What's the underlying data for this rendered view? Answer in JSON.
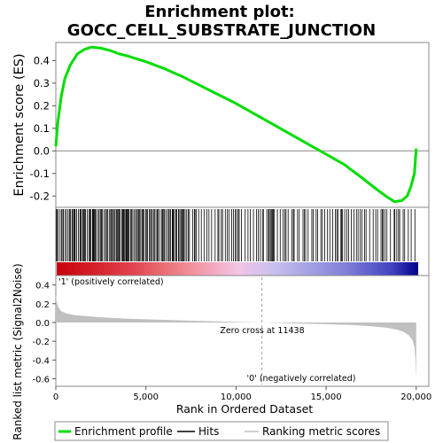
{
  "title_line1": "Enrichment plot:",
  "title_line2": "GOCC_CELL_SUBSTRATE_JUNCTION",
  "colors": {
    "es_line": "#00dd00",
    "hits": "#000000",
    "metric_fill": "#c0c0c0",
    "pos_label": "#cc0000",
    "neg_label": "#0000cc",
    "zero_cross_line": "#a0a0a0"
  },
  "chart_data": [
    {
      "type": "line",
      "name": "enrichment-score",
      "ylabel": "Enrichment score (ES)",
      "ylim": [
        -0.25,
        0.48
      ],
      "yticks": [
        -0.2,
        -0.1,
        0.0,
        0.1,
        0.2,
        0.3,
        0.4
      ],
      "ytick_labels": [
        "-0.2",
        "-0.1",
        "0.0",
        "0.1",
        "0.2",
        "0.3",
        "0.4"
      ],
      "xlim": [
        0,
        20700
      ],
      "series": [
        {
          "name": "Enrichment profile",
          "x": [
            0,
            100,
            300,
            500,
            800,
            1200,
            1600,
            2000,
            2500,
            3000,
            3500,
            4000,
            5000,
            6000,
            7000,
            8000,
            9000,
            10000,
            11000,
            11438,
            12000,
            13000,
            14000,
            15000,
            16000,
            17000,
            17800,
            18400,
            18800,
            19200,
            19500,
            19700,
            19900,
            20000
          ],
          "y": [
            0.02,
            0.12,
            0.24,
            0.32,
            0.38,
            0.43,
            0.45,
            0.46,
            0.455,
            0.445,
            0.43,
            0.42,
            0.395,
            0.365,
            0.33,
            0.29,
            0.25,
            0.21,
            0.165,
            0.145,
            0.12,
            0.075,
            0.03,
            -0.015,
            -0.06,
            -0.12,
            -0.17,
            -0.205,
            -0.225,
            -0.22,
            -0.2,
            -0.16,
            -0.1,
            0.01
          ]
        }
      ]
    },
    {
      "type": "heatmap",
      "name": "hits-and-ranking",
      "hits_bands": [
        [
          0,
          7400
        ],
        [
          7400,
          11900
        ],
        [
          11900,
          20000
        ]
      ],
      "hits_density": [
        "high",
        "medium",
        "medium"
      ]
    },
    {
      "type": "area",
      "name": "ranked-list-metric",
      "ylabel": "Ranked list metric (Signal2Noise)",
      "xlabel": "Rank in Ordered Dataset",
      "ylim": [
        -0.68,
        0.5
      ],
      "yticks": [
        -0.6,
        -0.4,
        -0.2,
        0.0,
        0.2,
        0.4
      ],
      "ytick_labels": [
        "-0.6",
        "-0.4",
        "-0.2",
        "0.0",
        "0.2",
        "0.4"
      ],
      "xlim": [
        0,
        20700
      ],
      "xticks": [
        0,
        5000,
        10000,
        15000,
        20000
      ],
      "xtick_labels": [
        "0",
        "5,000",
        "10,000",
        "15,000",
        "20,000"
      ],
      "series": [
        {
          "name": "Ranking metric scores",
          "x": [
            0,
            50,
            150,
            300,
            600,
            1000,
            1500,
            2500,
            4000,
            6000,
            8000,
            10000,
            11438,
            13000,
            15000,
            16500,
            17500,
            18300,
            18900,
            19300,
            19600,
            19800,
            19900,
            19960,
            20000
          ],
          "y": [
            0.3,
            0.22,
            0.16,
            0.12,
            0.095,
            0.08,
            0.07,
            0.055,
            0.04,
            0.028,
            0.016,
            0.006,
            0.0,
            -0.008,
            -0.018,
            -0.028,
            -0.04,
            -0.055,
            -0.075,
            -0.1,
            -0.14,
            -0.19,
            -0.26,
            -0.4,
            -0.62
          ]
        }
      ],
      "zero_cross": 11438,
      "zero_cross_label": "Zero cross at 11438",
      "pos_label": "'1' (positively correlated)",
      "neg_label": "'0' (negatively correlated)"
    }
  ],
  "legend": {
    "position": "bottom",
    "items": [
      {
        "label": "Enrichment profile",
        "color": "#00dd00"
      },
      {
        "label": "Hits",
        "color": "#000000"
      },
      {
        "label": "Ranking metric scores",
        "color": "#c0c0c0"
      }
    ]
  }
}
